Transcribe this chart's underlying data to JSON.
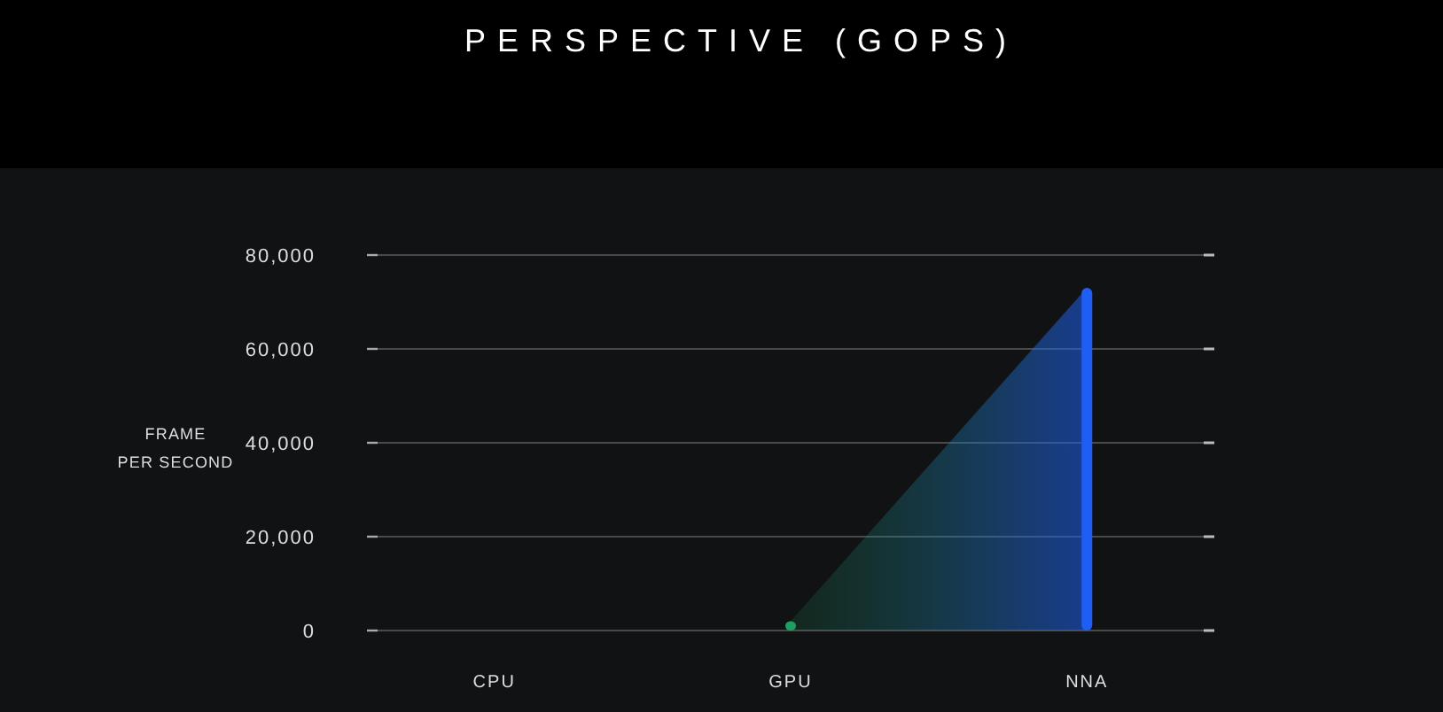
{
  "chart_data": {
    "type": "bar",
    "title": "PERSPECTIVE (GOPS)",
    "ylabel": "FRAME\nPER SECOND",
    "categories": [
      "CPU",
      "GPU",
      "NNA"
    ],
    "values": [
      null,
      2000,
      73000
    ],
    "colors": [
      null,
      "#1d9e62",
      "#1f5ef5"
    ],
    "ylim": [
      0,
      80000
    ],
    "yticks": [
      0,
      {
        "value": 20000,
        "label": "20,000"
      },
      {
        "value": 40000,
        "label": "40,000"
      },
      {
        "value": 60000,
        "label": "60,000"
      },
      {
        "value": 80000,
        "label": "80,000"
      }
    ],
    "grid": "y"
  }
}
